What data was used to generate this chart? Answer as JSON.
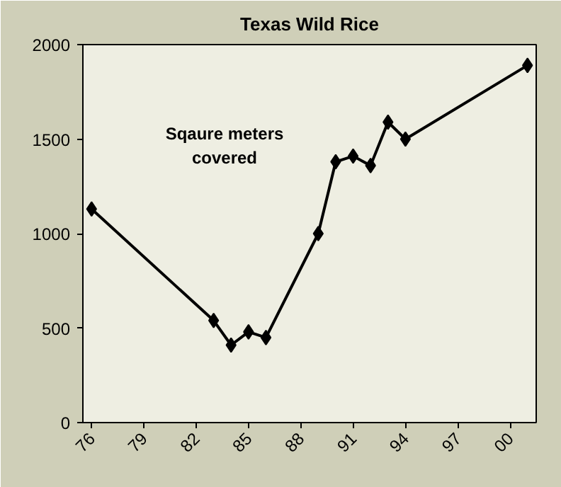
{
  "chart_data": {
    "type": "line",
    "title": "Texas Wild Rice",
    "annotations": [
      "Sqaure meters\ncovered"
    ],
    "x": [
      1976,
      1983,
      1984,
      1985,
      1986,
      1989,
      1990,
      1991,
      1992,
      1993,
      1994,
      2001
    ],
    "series": [
      {
        "color": "#000000",
        "values": [
          1130,
          540,
          410,
          480,
          450,
          1000,
          1380,
          1410,
          1360,
          1590,
          1500,
          1890
        ]
      }
    ],
    "xlim": [
      1975.5,
      2001.5
    ],
    "xticks": [
      {
        "value": 1976,
        "label": "76"
      },
      {
        "value": 1979,
        "label": "79"
      },
      {
        "value": 1982,
        "label": "82"
      },
      {
        "value": 1985,
        "label": "85"
      },
      {
        "value": 1988,
        "label": "88"
      },
      {
        "value": 1991,
        "label": "91"
      },
      {
        "value": 1994,
        "label": "94"
      },
      {
        "value": 1997,
        "label": "97"
      },
      {
        "value": 2000,
        "label": "00"
      }
    ],
    "ylim": [
      0,
      2000
    ],
    "yticks": [
      0,
      500,
      1000,
      1500,
      2000
    ],
    "grid": false,
    "marker": "diamond",
    "line_style": "solid"
  }
}
